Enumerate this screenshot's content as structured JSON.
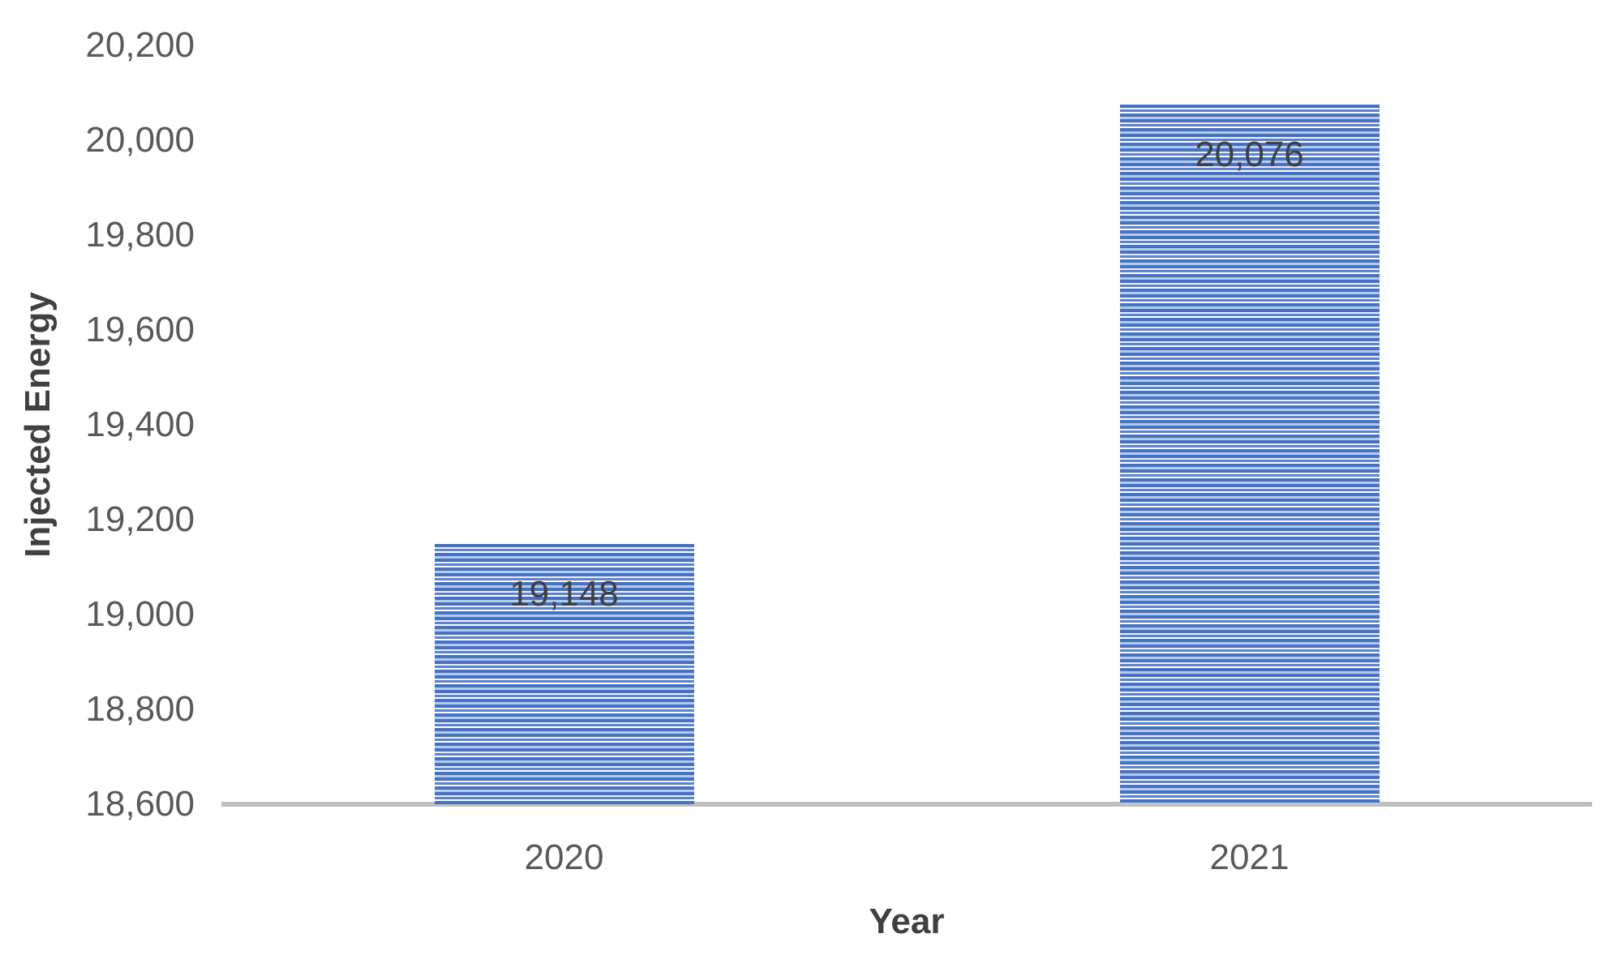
{
  "chart_data": {
    "type": "bar",
    "title": "",
    "categories": [
      "2020",
      "2021"
    ],
    "values": [
      19148,
      20076
    ],
    "data_labels": [
      "19,148",
      "20,076"
    ],
    "data_label_position": "inside-end",
    "xlabel": "Year",
    "ylabel": "Injected Energy",
    "ylim": [
      18600,
      20200
    ],
    "ytick_step": 200,
    "ytick_labels": [
      "18,600",
      "18,800",
      "19,000",
      "19,200",
      "19,400",
      "19,600",
      "19,800",
      "20,000",
      "20,200"
    ],
    "grid": false,
    "legend": false,
    "colors": {
      "bar_base": "#4472C4",
      "bar_stripes": [
        {
          "color": "#4472C4",
          "h": 4
        },
        {
          "color": "#E9EFF9",
          "h": 2
        },
        {
          "color": "#5E82CE",
          "h": 3
        },
        {
          "color": "#FFFFFF",
          "h": 2
        },
        {
          "color": "#4472C4",
          "h": 4
        },
        {
          "color": "#B8C9E9",
          "h": 3
        }
      ],
      "axis_line": "#BFBFBF",
      "tick_label": "#595959",
      "axis_title": "#404040",
      "data_label": "#404040",
      "background": "#FFFFFF"
    }
  }
}
